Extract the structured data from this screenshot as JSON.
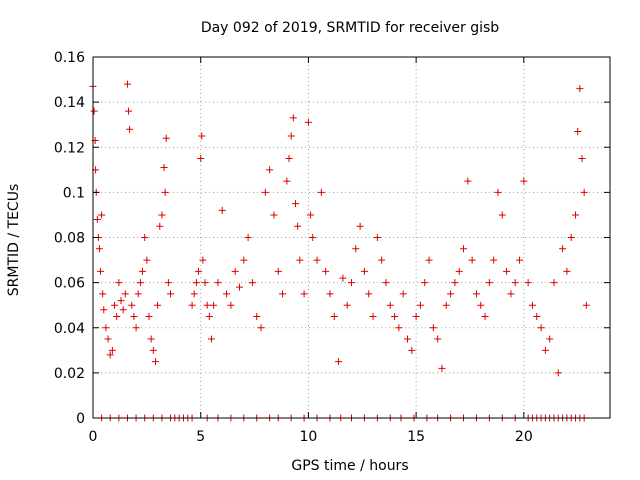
{
  "chart_data": {
    "type": "scatter",
    "title": "Day 092 of 2019, SRMTID for receiver gisb",
    "xlabel": "GPS time / hours",
    "ylabel": "SRMTID / TECUs",
    "xlim": [
      0,
      24
    ],
    "ylim": [
      0,
      0.16
    ],
    "x_ticks": [
      "0",
      "5",
      "10",
      "15",
      "20"
    ],
    "y_ticks": [
      "0",
      "0.02",
      "0.04",
      "0.06",
      "0.08",
      "0.1",
      "0.12",
      "0.14",
      "0.16"
    ],
    "grid": true,
    "marker": "+",
    "color": "#e00000",
    "series": [
      {
        "points": [
          [
            0.0,
            0.147
          ],
          [
            0.05,
            0.136
          ],
          [
            0.1,
            0.123
          ],
          [
            0.12,
            0.11
          ],
          [
            0.15,
            0.1
          ],
          [
            0.2,
            0.088
          ],
          [
            0.25,
            0.08
          ],
          [
            0.3,
            0.075
          ],
          [
            0.35,
            0.065
          ],
          [
            0.4,
            0.09
          ],
          [
            0.45,
            0.055
          ],
          [
            0.5,
            0.048
          ],
          [
            0.6,
            0.04
          ],
          [
            0.7,
            0.035
          ],
          [
            0.8,
            0.028
          ],
          [
            0.9,
            0.03
          ],
          [
            1.0,
            0.05
          ],
          [
            1.1,
            0.045
          ],
          [
            1.2,
            0.06
          ],
          [
            1.3,
            0.052
          ],
          [
            1.4,
            0.048
          ],
          [
            1.5,
            0.055
          ],
          [
            1.6,
            0.148
          ],
          [
            1.65,
            0.136
          ],
          [
            1.7,
            0.128
          ],
          [
            1.8,
            0.05
          ],
          [
            1.9,
            0.045
          ],
          [
            2.0,
            0.04
          ],
          [
            2.1,
            0.055
          ],
          [
            2.2,
            0.06
          ],
          [
            2.3,
            0.065
          ],
          [
            2.4,
            0.08
          ],
          [
            2.5,
            0.07
          ],
          [
            2.6,
            0.045
          ],
          [
            2.7,
            0.035
          ],
          [
            2.8,
            0.03
          ],
          [
            2.9,
            0.025
          ],
          [
            3.0,
            0.05
          ],
          [
            3.1,
            0.085
          ],
          [
            3.2,
            0.09
          ],
          [
            3.3,
            0.111
          ],
          [
            3.35,
            0.1
          ],
          [
            3.4,
            0.124
          ],
          [
            3.5,
            0.06
          ],
          [
            3.6,
            0.055
          ],
          [
            4.6,
            0.05
          ],
          [
            4.7,
            0.055
          ],
          [
            4.8,
            0.06
          ],
          [
            4.9,
            0.065
          ],
          [
            5.0,
            0.115
          ],
          [
            5.05,
            0.125
          ],
          [
            5.1,
            0.07
          ],
          [
            5.2,
            0.06
          ],
          [
            5.3,
            0.05
          ],
          [
            5.4,
            0.045
          ],
          [
            5.5,
            0.035
          ],
          [
            5.6,
            0.05
          ],
          [
            5.8,
            0.06
          ],
          [
            6.0,
            0.092
          ],
          [
            6.2,
            0.055
          ],
          [
            6.4,
            0.05
          ],
          [
            6.6,
            0.065
          ],
          [
            6.8,
            0.058
          ],
          [
            7.0,
            0.07
          ],
          [
            7.2,
            0.08
          ],
          [
            7.4,
            0.06
          ],
          [
            7.6,
            0.045
          ],
          [
            7.8,
            0.04
          ],
          [
            8.0,
            0.1
          ],
          [
            8.2,
            0.11
          ],
          [
            8.4,
            0.09
          ],
          [
            8.6,
            0.065
          ],
          [
            8.8,
            0.055
          ],
          [
            9.0,
            0.105
          ],
          [
            9.1,
            0.115
          ],
          [
            9.2,
            0.125
          ],
          [
            9.3,
            0.133
          ],
          [
            9.4,
            0.095
          ],
          [
            9.5,
            0.085
          ],
          [
            9.6,
            0.07
          ],
          [
            9.8,
            0.055
          ],
          [
            10.0,
            0.131
          ],
          [
            10.1,
            0.09
          ],
          [
            10.2,
            0.08
          ],
          [
            10.4,
            0.07
          ],
          [
            10.6,
            0.1
          ],
          [
            10.8,
            0.065
          ],
          [
            11.0,
            0.055
          ],
          [
            11.2,
            0.045
          ],
          [
            11.4,
            0.025
          ],
          [
            11.6,
            0.062
          ],
          [
            11.8,
            0.05
          ],
          [
            12.0,
            0.06
          ],
          [
            12.2,
            0.075
          ],
          [
            12.4,
            0.085
          ],
          [
            12.6,
            0.065
          ],
          [
            12.8,
            0.055
          ],
          [
            13.0,
            0.045
          ],
          [
            13.2,
            0.08
          ],
          [
            13.4,
            0.07
          ],
          [
            13.6,
            0.06
          ],
          [
            13.8,
            0.05
          ],
          [
            14.0,
            0.045
          ],
          [
            14.2,
            0.04
          ],
          [
            14.4,
            0.055
          ],
          [
            14.6,
            0.035
          ],
          [
            14.8,
            0.03
          ],
          [
            15.0,
            0.045
          ],
          [
            15.2,
            0.05
          ],
          [
            15.4,
            0.06
          ],
          [
            15.6,
            0.07
          ],
          [
            15.8,
            0.04
          ],
          [
            16.0,
            0.035
          ],
          [
            16.2,
            0.022
          ],
          [
            16.4,
            0.05
          ],
          [
            16.6,
            0.055
          ],
          [
            16.8,
            0.06
          ],
          [
            17.0,
            0.065
          ],
          [
            17.2,
            0.075
          ],
          [
            17.4,
            0.105
          ],
          [
            17.6,
            0.07
          ],
          [
            17.8,
            0.055
          ],
          [
            18.0,
            0.05
          ],
          [
            18.2,
            0.045
          ],
          [
            18.4,
            0.06
          ],
          [
            18.6,
            0.07
          ],
          [
            18.8,
            0.1
          ],
          [
            19.0,
            0.09
          ],
          [
            19.2,
            0.065
          ],
          [
            19.4,
            0.055
          ],
          [
            19.6,
            0.06
          ],
          [
            19.8,
            0.07
          ],
          [
            20.0,
            0.105
          ],
          [
            20.2,
            0.06
          ],
          [
            20.4,
            0.05
          ],
          [
            20.6,
            0.045
          ],
          [
            20.8,
            0.04
          ],
          [
            21.0,
            0.03
          ],
          [
            21.2,
            0.035
          ],
          [
            21.4,
            0.06
          ],
          [
            21.6,
            0.02
          ],
          [
            21.8,
            0.075
          ],
          [
            22.0,
            0.065
          ],
          [
            22.2,
            0.08
          ],
          [
            22.4,
            0.09
          ],
          [
            22.5,
            0.127
          ],
          [
            22.6,
            0.146
          ],
          [
            22.7,
            0.115
          ],
          [
            22.8,
            0.1
          ],
          [
            22.9,
            0.05
          ]
        ]
      },
      {
        "points": [
          [
            0.4,
            0
          ],
          [
            0.8,
            0
          ],
          [
            1.2,
            0
          ],
          [
            1.6,
            0
          ],
          [
            2.0,
            0
          ],
          [
            2.4,
            0
          ],
          [
            2.8,
            0
          ],
          [
            3.2,
            0
          ],
          [
            3.6,
            0
          ],
          [
            3.8,
            0
          ],
          [
            4.0,
            0
          ],
          [
            4.2,
            0
          ],
          [
            4.4,
            0
          ],
          [
            4.6,
            0
          ],
          [
            5.3,
            0
          ],
          [
            5.8,
            0
          ],
          [
            6.4,
            0
          ],
          [
            7.0,
            0
          ],
          [
            7.6,
            0
          ],
          [
            8.2,
            0
          ],
          [
            8.6,
            0
          ],
          [
            9.2,
            0
          ],
          [
            9.8,
            0
          ],
          [
            10.4,
            0
          ],
          [
            11.0,
            0
          ],
          [
            11.5,
            0
          ],
          [
            12.0,
            0
          ],
          [
            12.6,
            0
          ],
          [
            13.2,
            0
          ],
          [
            13.8,
            0
          ],
          [
            14.3,
            0
          ],
          [
            14.9,
            0
          ],
          [
            15.5,
            0
          ],
          [
            16.0,
            0
          ],
          [
            16.6,
            0
          ],
          [
            17.2,
            0
          ],
          [
            17.8,
            0
          ],
          [
            18.4,
            0
          ],
          [
            19.0,
            0
          ],
          [
            19.6,
            0
          ],
          [
            20.2,
            0
          ],
          [
            20.4,
            0
          ],
          [
            20.6,
            0
          ],
          [
            20.8,
            0
          ],
          [
            21.0,
            0
          ],
          [
            21.2,
            0
          ],
          [
            21.4,
            0
          ],
          [
            21.6,
            0
          ],
          [
            21.8,
            0
          ],
          [
            22.0,
            0
          ],
          [
            22.2,
            0
          ],
          [
            22.4,
            0
          ],
          [
            22.6,
            0
          ],
          [
            22.8,
            0
          ]
        ]
      }
    ]
  }
}
